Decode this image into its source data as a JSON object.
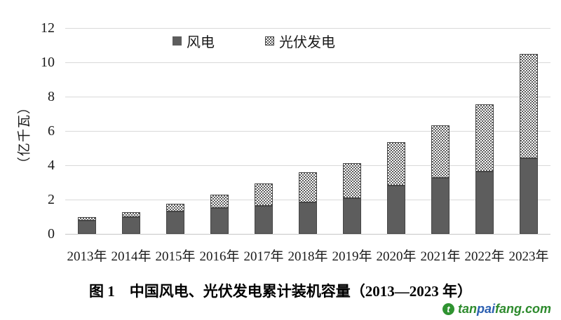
{
  "figure": {
    "caption": "图 1　中国风电、光伏发电累计装机容量（2013—2023 年）"
  },
  "chart_data": {
    "type": "bar",
    "stacked": true,
    "title": "",
    "xlabel": "",
    "ylabel": "（亿千瓦）",
    "ylim": [
      0,
      12
    ],
    "yticks": [
      0,
      2,
      4,
      6,
      8,
      10,
      12
    ],
    "grid": "horizontal",
    "legend_position": "top-center",
    "categories": [
      "2013年",
      "2014年",
      "2015年",
      "2016年",
      "2017年",
      "2018年",
      "2019年",
      "2020年",
      "2021年",
      "2022年",
      "2023年"
    ],
    "series": [
      {
        "name": "风电",
        "style": "solid",
        "color": "#5d5d5d",
        "values": [
          0.76,
          0.96,
          1.29,
          1.49,
          1.64,
          1.84,
          2.1,
          2.81,
          3.28,
          3.65,
          4.41
        ]
      },
      {
        "name": "光伏发电",
        "style": "checker-pattern",
        "color": "#5d5d5d",
        "values": [
          0.19,
          0.28,
          0.43,
          0.77,
          1.3,
          1.74,
          2.04,
          2.53,
          3.06,
          3.93,
          6.09
        ]
      }
    ]
  },
  "watermark": {
    "logo": "tanpaifang-leaf-logo",
    "logo_color": "#2f9331",
    "segments": [
      {
        "text": "tan",
        "color": "#2e8b2e"
      },
      {
        "text": "pai",
        "color": "#2b5fb0"
      },
      {
        "text": "fang",
        "color": "#2e8b2e"
      },
      {
        "text": ".com",
        "color": "#2e8b2e"
      }
    ]
  },
  "colors": {
    "grid": "#d9d9d9",
    "axis": "#c6c6c6",
    "text": "#1a1a1a"
  }
}
